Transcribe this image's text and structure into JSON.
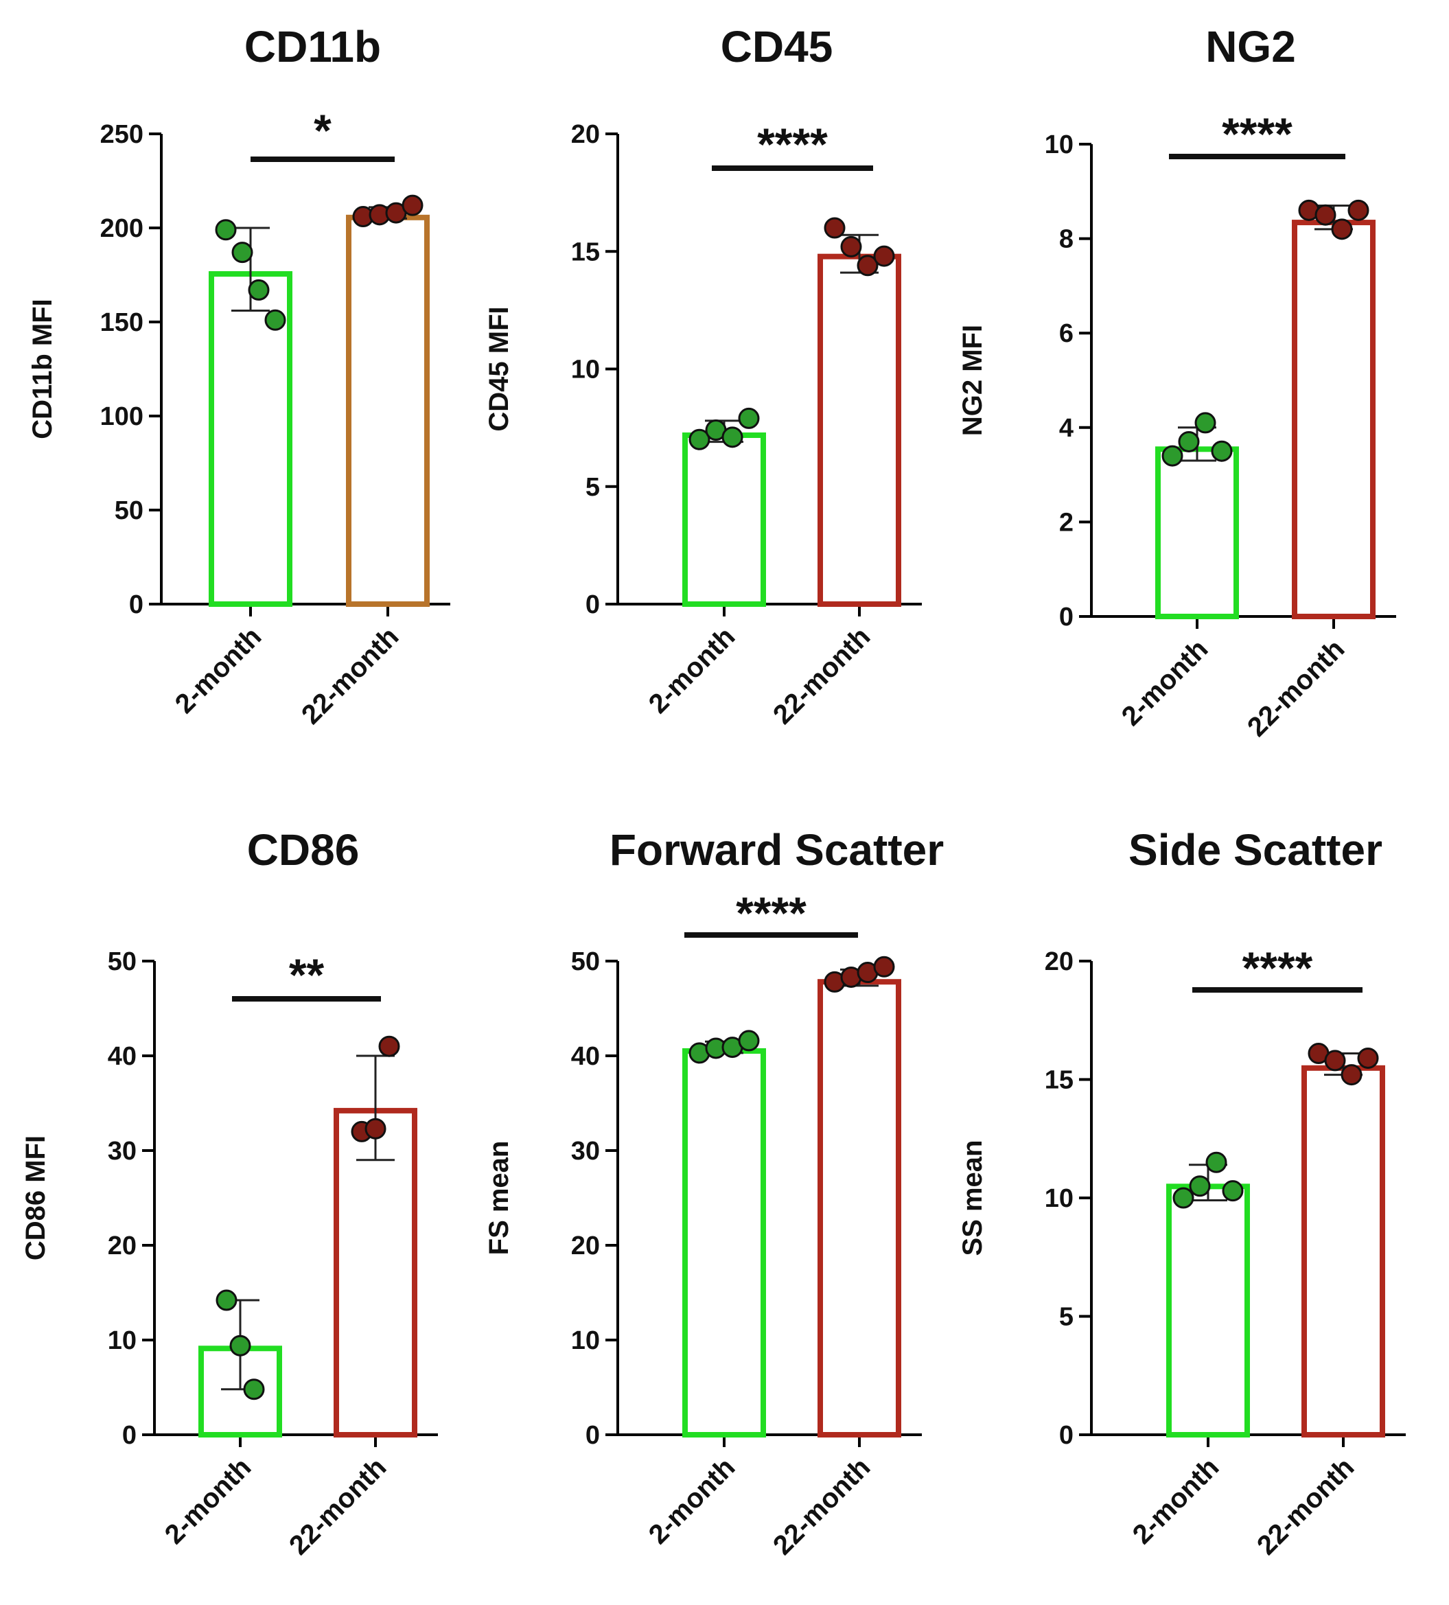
{
  "colors": {
    "young": "#22dd22",
    "old": "#b02a1e",
    "old_cd11b": "#b8742b",
    "young_point": "#2c9a2c",
    "old_point": "#7e1c14",
    "axis": "#000000"
  },
  "chart_data": [
    {
      "type": "bar",
      "title": "CD11b",
      "ylabel": "CD11b MFI",
      "ylim": [
        0,
        250
      ],
      "yticks": [
        0,
        50,
        100,
        150,
        200,
        250
      ],
      "categories": [
        "2-month",
        "22-month"
      ],
      "values": [
        177,
        207
      ],
      "error_lo": [
        156,
        205
      ],
      "error_hi": [
        200,
        211
      ],
      "points": [
        [
          199,
          187,
          167,
          151
        ],
        [
          206,
          207,
          208,
          212
        ]
      ],
      "significance": "*",
      "old_color_key": "old_cd11b"
    },
    {
      "type": "bar",
      "title": "CD45",
      "ylabel": "CD45 MFI",
      "ylim": [
        0,
        20
      ],
      "yticks": [
        0,
        5,
        10,
        15,
        20
      ],
      "categories": [
        "2-month",
        "22-month"
      ],
      "values": [
        7.3,
        14.9
      ],
      "error_lo": [
        6.9,
        14.1
      ],
      "error_hi": [
        7.8,
        15.7
      ],
      "points": [
        [
          7.0,
          7.4,
          7.1,
          7.9
        ],
        [
          16.0,
          15.2,
          14.4,
          14.8
        ]
      ],
      "significance": "****",
      "old_color_key": "old"
    },
    {
      "type": "bar",
      "title": "NG2",
      "ylabel": "NG2 MFI",
      "ylim": [
        0,
        10
      ],
      "yticks": [
        0,
        2,
        4,
        6,
        8,
        10
      ],
      "categories": [
        "2-month",
        "22-month"
      ],
      "values": [
        3.6,
        8.4
      ],
      "error_lo": [
        3.3,
        8.2
      ],
      "error_hi": [
        4.0,
        8.7
      ],
      "points": [
        [
          3.4,
          3.7,
          4.1,
          3.5
        ],
        [
          8.6,
          8.5,
          8.2,
          8.6
        ]
      ],
      "significance": "****",
      "old_color_key": "old"
    },
    {
      "type": "bar",
      "title": "CD86",
      "ylabel": "CD86 MFI",
      "ylim": [
        0,
        50
      ],
      "yticks": [
        0,
        10,
        20,
        30,
        40,
        50
      ],
      "categories": [
        "2-month",
        "22-month"
      ],
      "values": [
        9.4,
        34.5
      ],
      "error_lo": [
        4.8,
        29.0
      ],
      "error_hi": [
        14.2,
        40.0
      ],
      "points": [
        [
          14.2,
          9.4,
          4.8
        ],
        [
          32.0,
          32.3,
          41.0
        ]
      ],
      "significance": "**",
      "old_color_key": "old"
    },
    {
      "type": "bar",
      "title": "Forward Scatter",
      "ylabel": "FS mean",
      "ylim": [
        0,
        50
      ],
      "yticks": [
        0,
        10,
        20,
        30,
        40,
        50
      ],
      "categories": [
        "2-month",
        "22-month"
      ],
      "values": [
        40.8,
        48.1
      ],
      "error_lo": [
        40.3,
        47.4
      ],
      "error_hi": [
        41.5,
        49.1
      ],
      "points": [
        [
          40.3,
          40.8,
          40.9,
          41.6
        ],
        [
          47.8,
          48.3,
          48.8,
          49.4
        ]
      ],
      "significance": "****",
      "old_color_key": "old"
    },
    {
      "type": "bar",
      "title": "Side Scatter",
      "ylabel": "SS mean",
      "ylim": [
        0,
        20
      ],
      "yticks": [
        0,
        5,
        10,
        15,
        20
      ],
      "categories": [
        "2-month",
        "22-month"
      ],
      "values": [
        10.6,
        15.6
      ],
      "error_lo": [
        9.9,
        15.2
      ],
      "error_hi": [
        11.4,
        16.1
      ],
      "points": [
        [
          10.0,
          10.5,
          11.5,
          10.3
        ],
        [
          16.1,
          15.8,
          15.2,
          15.9
        ]
      ],
      "significance": "****",
      "old_color_key": "old"
    }
  ]
}
